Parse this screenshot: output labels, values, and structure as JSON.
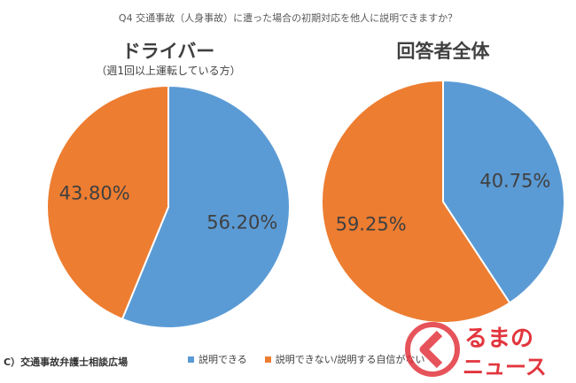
{
  "question": "Q4 交通事故（人身事故）に遭った場合の初期対応を他人に説明できますか？",
  "chart_data": [
    {
      "type": "pie",
      "title": "ドライバー",
      "subtitle": "（週1回以上運転している方）",
      "labels": [
        "説明できる",
        "説明できない/説明する自信がない"
      ],
      "values": [
        56.2,
        43.8
      ],
      "value_labels": [
        "56.20%",
        "43.80%"
      ],
      "colors": [
        "#5B9BD5",
        "#ED7D31"
      ]
    },
    {
      "type": "pie",
      "title": "回答者全体",
      "labels": [
        "説明できる",
        "説明できない/説明する自信がない"
      ],
      "values": [
        40.75,
        59.25
      ],
      "value_labels": [
        "40.75%",
        "59.25%"
      ],
      "colors": [
        "#5B9BD5",
        "#ED7D31"
      ]
    }
  ],
  "legend": {
    "position": "bottom",
    "items": [
      {
        "label": "説明できる",
        "color": "#5B9BD5"
      },
      {
        "label": "説明できない/説明する自信がない",
        "color": "#ED7D31"
      }
    ]
  },
  "credit": "C）交通事故弁護士相談広場",
  "logo": {
    "line1": "るまの",
    "line2": "ニュース",
    "color": "#E2353D"
  }
}
